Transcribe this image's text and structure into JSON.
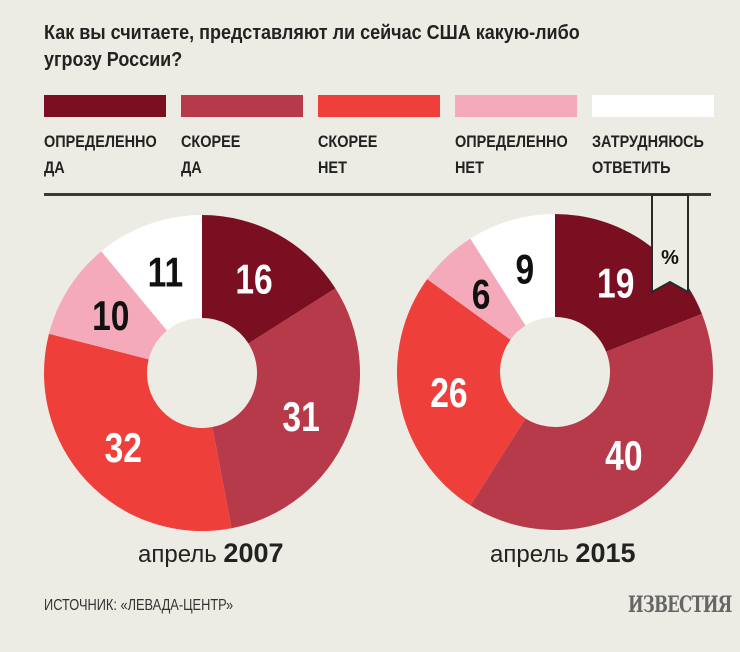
{
  "chart_data": {
    "type": "pie",
    "title": "Как вы считаете, представляют ли сейчас США какую-либо угрозу России?",
    "unit": "%",
    "legend": [
      {
        "label": "ОПРЕДЕЛЕННО\nДА",
        "color": "#7a0f22"
      },
      {
        "label": "СКОРЕЕ\nДА",
        "color": "#b73a4a"
      },
      {
        "label": "СКОРЕЕ\nНЕТ",
        "color": "#ee3f3a"
      },
      {
        "label": "ОПРЕДЕЛЕННО\nНЕТ",
        "color": "#f5aabb"
      },
      {
        "label": "ЗАТРУДНЯЮСЬ\nОТВЕТИТЬ",
        "color": "#ffffff"
      }
    ],
    "charts": [
      {
        "caption_prefix": "апрель",
        "year": "2007",
        "values": [
          16,
          31,
          32,
          10,
          11
        ]
      },
      {
        "caption_prefix": "апрель",
        "year": "2015",
        "values": [
          19,
          40,
          26,
          6,
          9
        ]
      }
    ]
  },
  "source": "ИСТОЧНИК: «ЛЕВАДА-ЦЕНТР»",
  "logo": "ИЗВЕСТИЯ"
}
